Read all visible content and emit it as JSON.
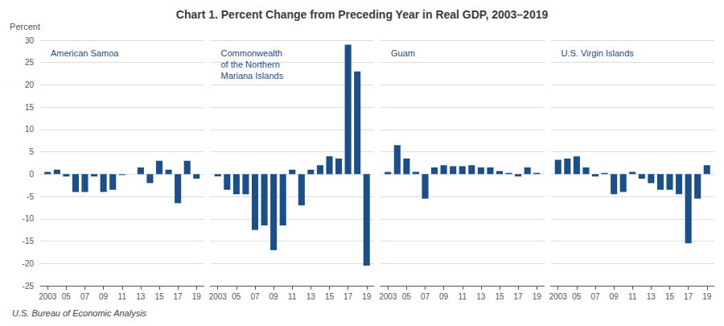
{
  "chart_data": [
    {
      "type": "bar",
      "title": "American Samoa",
      "ylabel": "Percent",
      "annotations": [
        "Chart 1. Percent Change from Preceding Year in Real GDP, 2003–2019",
        "U.S. Bureau of Economic Analysis"
      ],
      "x": [
        2003,
        2004,
        2005,
        2006,
        2007,
        2008,
        2009,
        2010,
        2011,
        2012,
        2013,
        2014,
        2015,
        2016,
        2017,
        2018,
        2019
      ],
      "values": [
        0.5,
        1.0,
        -0.5,
        -4.0,
        -4.0,
        -0.5,
        -4.0,
        -3.5,
        -0.2,
        0.0,
        1.5,
        -2.0,
        3.0,
        1.0,
        -6.5,
        3.0,
        -1.0
      ],
      "color": "#1A4F8A",
      "xlim": [
        2002.2,
        2019.8
      ],
      "xticks": [
        2003,
        {
          "value": 2005,
          "label": "05"
        },
        {
          "value": 2007,
          "label": "07"
        },
        {
          "value": 2009,
          "label": "09"
        },
        {
          "value": 2011,
          "label": "11"
        },
        {
          "value": 2013,
          "label": "13"
        },
        {
          "value": 2015,
          "label": "15"
        },
        {
          "value": 2017,
          "label": "17"
        },
        {
          "value": 2019,
          "label": "19"
        }
      ],
      "ylim": [
        -25,
        30
      ],
      "yticks": [
        -25,
        -20,
        -15,
        -10,
        -5,
        0,
        5,
        10,
        15,
        20,
        25,
        30
      ],
      "grid": true
    },
    {
      "type": "bar",
      "title": "Commonwealth\nof the Northern\nMariana Islands",
      "x": [
        2003,
        2004,
        2005,
        2006,
        2007,
        2008,
        2009,
        2010,
        2011,
        2012,
        2013,
        2014,
        2015,
        2016,
        2017,
        2018,
        2019
      ],
      "values": [
        -0.5,
        -3.5,
        -4.5,
        -4.5,
        -12.5,
        -11.5,
        -17.0,
        -11.5,
        1.0,
        -7.0,
        1.0,
        2.0,
        4.0,
        3.5,
        29.0,
        23.0,
        -20.5
      ],
      "color": "#1A4F8A",
      "xlim": [
        2002.2,
        2019.8
      ],
      "xticks": [
        2003,
        {
          "value": 2005,
          "label": "05"
        },
        {
          "value": 2007,
          "label": "07"
        },
        {
          "value": 2009,
          "label": "09"
        },
        {
          "value": 2011,
          "label": "11"
        },
        {
          "value": 2013,
          "label": "13"
        },
        {
          "value": 2015,
          "label": "15"
        },
        {
          "value": 2017,
          "label": "17"
        },
        {
          "value": 2019,
          "label": "19"
        }
      ],
      "ylim": [
        -25,
        30
      ],
      "yticks": [
        -25,
        -20,
        -15,
        -10,
        -5,
        0,
        5,
        10,
        15,
        20,
        25,
        30
      ],
      "grid": true,
      "tick_labels": "x"
    },
    {
      "type": "bar",
      "title": "Guam",
      "x": [
        2003,
        2004,
        2005,
        2006,
        2007,
        2008,
        2009,
        2010,
        2011,
        2012,
        2013,
        2014,
        2015,
        2016,
        2017,
        2018,
        2019
      ],
      "values": [
        0.5,
        6.5,
        3.5,
        0.5,
        -5.5,
        1.5,
        2.0,
        1.8,
        1.8,
        2.0,
        1.5,
        1.5,
        0.7,
        0.3,
        -0.5,
        1.5,
        0.3
      ],
      "color": "#1A4F8A",
      "xlim": [
        2002.2,
        2019.8
      ],
      "xticks": [
        2003,
        {
          "value": 2005,
          "label": "05"
        },
        {
          "value": 2007,
          "label": "07"
        },
        {
          "value": 2009,
          "label": "09"
        },
        {
          "value": 2011,
          "label": "11"
        },
        {
          "value": 2013,
          "label": "13"
        },
        {
          "value": 2015,
          "label": "15"
        },
        {
          "value": 2017,
          "label": "17"
        },
        {
          "value": 2019,
          "label": "19"
        }
      ],
      "ylim": [
        -25,
        30
      ],
      "yticks": [
        -25,
        -20,
        -15,
        -10,
        -5,
        0,
        5,
        10,
        15,
        20,
        25,
        30
      ],
      "grid": true,
      "tick_labels": "x"
    },
    {
      "type": "bar",
      "title": "U.S. Virgin Islands",
      "x": [
        2003,
        2004,
        2005,
        2006,
        2007,
        2008,
        2009,
        2010,
        2011,
        2012,
        2013,
        2014,
        2015,
        2016,
        2017,
        2018,
        2019
      ],
      "values": [
        3.2,
        3.5,
        4.0,
        1.5,
        -0.5,
        0.3,
        -4.5,
        -4.0,
        0.5,
        -1.0,
        -2.0,
        -3.5,
        -3.5,
        -4.5,
        -15.5,
        -5.5,
        2.0
      ],
      "color": "#1A4F8A",
      "xlim": [
        2002.2,
        2019.8
      ],
      "xticks": [
        2003,
        {
          "value": 2005,
          "label": "05"
        },
        {
          "value": 2007,
          "label": "07"
        },
        {
          "value": 2009,
          "label": "09"
        },
        {
          "value": 2011,
          "label": "11"
        },
        {
          "value": 2013,
          "label": "13"
        },
        {
          "value": 2015,
          "label": "15"
        },
        {
          "value": 2017,
          "label": "17"
        },
        {
          "value": 2019,
          "label": "19"
        }
      ],
      "ylim": [
        -25,
        30
      ],
      "yticks": [
        -25,
        -20,
        -15,
        -10,
        -5,
        0,
        5,
        10,
        15,
        20,
        25,
        30
      ],
      "grid": true,
      "tick_labels": "x"
    }
  ]
}
